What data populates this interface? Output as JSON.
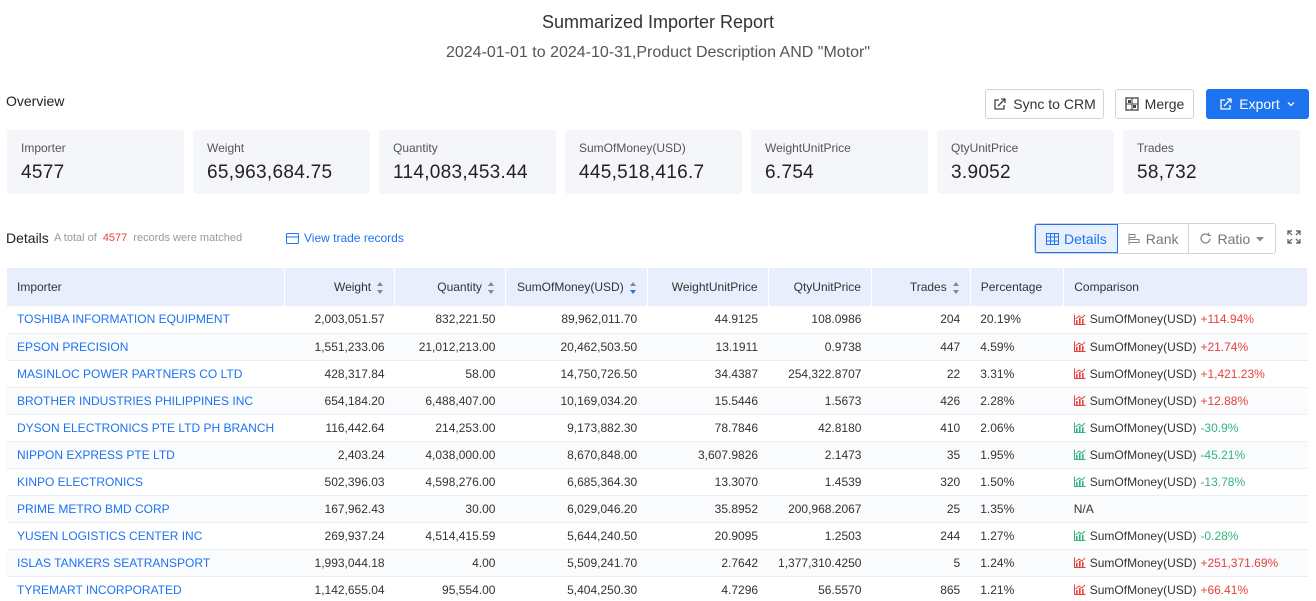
{
  "header": {
    "title": "Summarized Importer Report",
    "subtitle": "2024-01-01 to 2024-10-31,Product Description AND \"Motor\""
  },
  "overview": {
    "label": "Overview",
    "buttons": {
      "sync": "Sync to CRM",
      "merge": "Merge",
      "export": "Export"
    },
    "cards": [
      {
        "label": "Importer",
        "value": "4577"
      },
      {
        "label": "Weight",
        "value": "65,963,684.75"
      },
      {
        "label": "Quantity",
        "value": "114,083,453.44"
      },
      {
        "label": "SumOfMoney(USD)",
        "value": "445,518,416.7"
      },
      {
        "label": "WeightUnitPrice",
        "value": "6.754"
      },
      {
        "label": "QtyUnitPrice",
        "value": "3.9052"
      },
      {
        "label": "Trades",
        "value": "58,732"
      }
    ]
  },
  "details": {
    "label": "Details",
    "note_prefix": "A total of",
    "count": "4577",
    "note_suffix": "records were matched",
    "view_link": "View trade records",
    "views": {
      "details": "Details",
      "rank": "Rank",
      "ratio": "Ratio"
    }
  },
  "table": {
    "columns": [
      "Importer",
      "Weight",
      "Quantity",
      "SumOfMoney(USD)",
      "WeightUnitPrice",
      "QtyUnitPrice",
      "Trades",
      "Percentage",
      "Comparison"
    ],
    "rows": [
      {
        "importer": "TOSHIBA INFORMATION EQUIPMENT",
        "weight": "2,003,051.57",
        "quantity": "832,221.50",
        "money": "89,962,011.70",
        "wup": "44.9125",
        "qup": "108.0986",
        "trades": "204",
        "pct": "20.19%",
        "cmp_label": "SumOfMoney(USD)",
        "cmp_value": "+114.94%",
        "dir": "up"
      },
      {
        "importer": "EPSON PRECISION",
        "weight": "1,551,233.06",
        "quantity": "21,012,213.00",
        "money": "20,462,503.50",
        "wup": "13.1911",
        "qup": "0.9738",
        "trades": "447",
        "pct": "4.59%",
        "cmp_label": "SumOfMoney(USD)",
        "cmp_value": "+21.74%",
        "dir": "up"
      },
      {
        "importer": "MASINLOC POWER PARTNERS CO LTD",
        "weight": "428,317.84",
        "quantity": "58.00",
        "money": "14,750,726.50",
        "wup": "34.4387",
        "qup": "254,322.8707",
        "trades": "22",
        "pct": "3.31%",
        "cmp_label": "SumOfMoney(USD)",
        "cmp_value": "+1,421.23%",
        "dir": "up"
      },
      {
        "importer": "BROTHER INDUSTRIES PHILIPPINES INC",
        "weight": "654,184.20",
        "quantity": "6,488,407.00",
        "money": "10,169,034.20",
        "wup": "15.5446",
        "qup": "1.5673",
        "trades": "426",
        "pct": "2.28%",
        "cmp_label": "SumOfMoney(USD)",
        "cmp_value": "+12.88%",
        "dir": "up"
      },
      {
        "importer": "DYSON ELECTRONICS PTE LTD PH BRANCH",
        "weight": "116,442.64",
        "quantity": "214,253.00",
        "money": "9,173,882.30",
        "wup": "78.7846",
        "qup": "42.8180",
        "trades": "410",
        "pct": "2.06%",
        "cmp_label": "SumOfMoney(USD)",
        "cmp_value": "-30.9%",
        "dir": "down"
      },
      {
        "importer": "NIPPON EXPRESS PTE LTD",
        "weight": "2,403.24",
        "quantity": "4,038,000.00",
        "money": "8,670,848.00",
        "wup": "3,607.9826",
        "qup": "2.1473",
        "trades": "35",
        "pct": "1.95%",
        "cmp_label": "SumOfMoney(USD)",
        "cmp_value": "-45.21%",
        "dir": "down"
      },
      {
        "importer": "KINPO ELECTRONICS",
        "weight": "502,396.03",
        "quantity": "4,598,276.00",
        "money": "6,685,364.30",
        "wup": "13.3070",
        "qup": "1.4539",
        "trades": "320",
        "pct": "1.50%",
        "cmp_label": "SumOfMoney(USD)",
        "cmp_value": "-13.78%",
        "dir": "down"
      },
      {
        "importer": "PRIME METRO BMD CORP",
        "weight": "167,962.43",
        "quantity": "30.00",
        "money": "6,029,046.20",
        "wup": "35.8952",
        "qup": "200,968.2067",
        "trades": "25",
        "pct": "1.35%",
        "cmp_label": "",
        "cmp_value": "N/A",
        "dir": "none"
      },
      {
        "importer": "YUSEN LOGISTICS CENTER INC",
        "weight": "269,937.24",
        "quantity": "4,514,415.59",
        "money": "5,644,240.50",
        "wup": "20.9095",
        "qup": "1.2503",
        "trades": "244",
        "pct": "1.27%",
        "cmp_label": "SumOfMoney(USD)",
        "cmp_value": "-0.28%",
        "dir": "down"
      },
      {
        "importer": "ISLAS TANKERS SEATRANSPORT",
        "weight": "1,993,044.18",
        "quantity": "4.00",
        "money": "5,509,241.70",
        "wup": "2.7642",
        "qup": "1,377,310.4250",
        "trades": "5",
        "pct": "1.24%",
        "cmp_label": "SumOfMoney(USD)",
        "cmp_value": "+251,371.69%",
        "dir": "up"
      },
      {
        "importer": "TYREMART INCORPORATED",
        "weight": "1,142,655.04",
        "quantity": "95,554.00",
        "money": "5,404,250.30",
        "wup": "4.7296",
        "qup": "56.5570",
        "trades": "865",
        "pct": "1.21%",
        "cmp_label": "SumOfMoney(USD)",
        "cmp_value": "+66.41%",
        "dir": "up"
      }
    ]
  }
}
